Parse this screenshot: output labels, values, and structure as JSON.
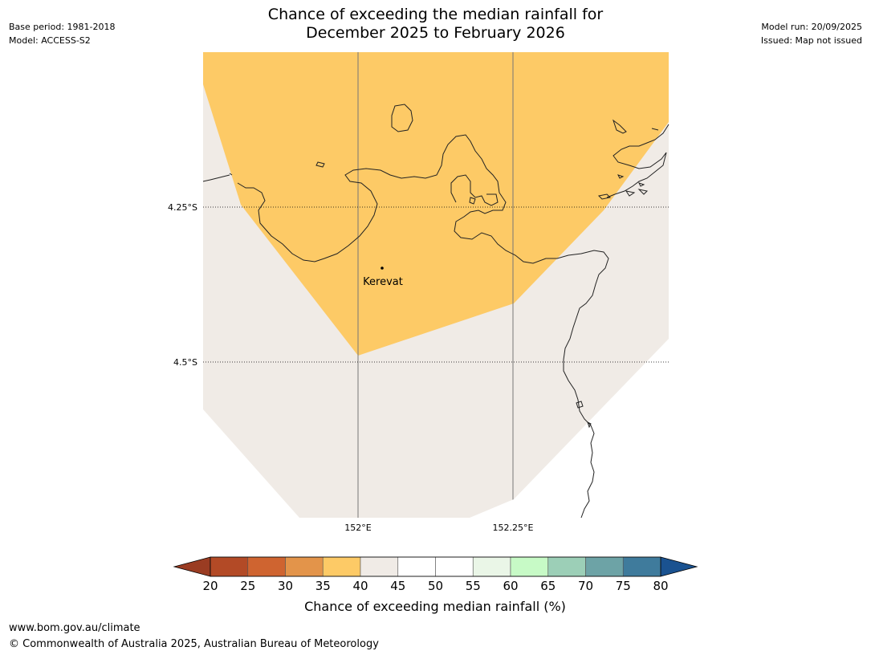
{
  "header": {
    "base_period": "Base period: 1981-2018",
    "model": "Model: ACCESS-S2",
    "model_run": "Model run: 20/09/2025",
    "issued": "Issued: Map not issued"
  },
  "title": {
    "line1": "Chance of exceeding the median rainfall for",
    "line2": "December 2025 to February 2026"
  },
  "map": {
    "latitudes": [
      "4.25°S",
      "4.5°S"
    ],
    "longitudes": [
      "152°E",
      "152.25°E"
    ],
    "place": {
      "name": "Kerevat"
    },
    "region_colors": {
      "band_35_40": "#fdca66",
      "band_40_45": "#f0ebe6",
      "coastline": "#222222",
      "gridline": "#777777"
    }
  },
  "colorbar": {
    "label": "Chance of exceeding median rainfall (%)",
    "ticks": [
      "20",
      "25",
      "30",
      "35",
      "40",
      "45",
      "50",
      "55",
      "60",
      "65",
      "70",
      "75",
      "80"
    ],
    "colors": [
      "#b34a26",
      "#cf6430",
      "#e3944a",
      "#fdca66",
      "#f0ebe6",
      "#ffffff",
      "#ffffff",
      "#eaf6e7",
      "#c7fac6",
      "#9ccfb7",
      "#6da3a6",
      "#3f7b9c"
    ],
    "under_color": "#9a3c22",
    "over_color": "#1a5290"
  },
  "footer": {
    "url": "www.bom.gov.au/climate",
    "copyright": "© Commonwealth of Australia 2025, Australian Bureau of Meteorology"
  }
}
